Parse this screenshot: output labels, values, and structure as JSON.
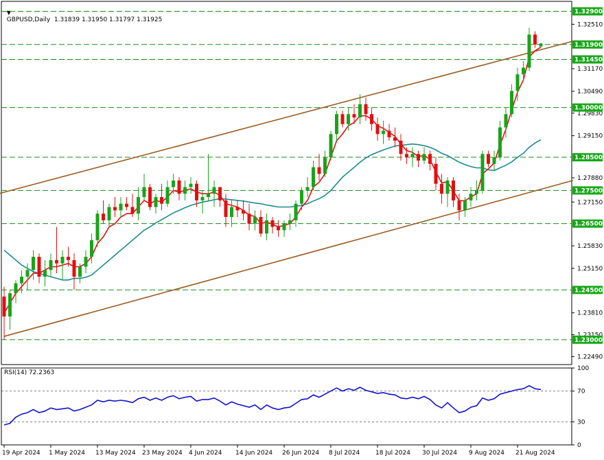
{
  "colors": {
    "up": "#1aa31a",
    "down": "#e01010",
    "ema_fast": "#e01010",
    "sma_slow": "#1a8a8f",
    "channel": "#9b5a20",
    "level_line": "#1a8a1a",
    "level_box": "#18a818",
    "rsi": "#1010d0",
    "grid": "#000000"
  },
  "main": {
    "header": "GBPUSD,Daily  1.31839 1.31950 1.31797 1.31925",
    "y_ticks": [
      "1.32510",
      "1.31170",
      "1.30490",
      "1.29830",
      "1.29150",
      "1.27880",
      "1.27150",
      "1.25830",
      "1.25150",
      "1.23810",
      "1.23150",
      "1.22490"
    ],
    "levels": [
      "1.32900",
      "1.31900",
      "1.31450",
      "1.30000",
      "1.28500",
      "1.27500",
      "1.26500",
      "1.24500",
      "1.23000"
    ]
  },
  "rsi": {
    "label": "RSI(14) 72.2363",
    "ticks": [
      "100",
      "70",
      "30",
      "0"
    ]
  },
  "x_axis": {
    "labels": [
      "19 Apr 2024",
      "1 May 2024",
      "13 May 2024",
      "23 May 2024",
      "4 Jun 2024",
      "14 Jun 2024",
      "26 Jun 2024",
      "8 Jul 2024",
      "18 Jul 2024",
      "30 Jul 2024",
      "9 Aug 2024",
      "21 Aug 2024"
    ]
  },
  "chart_data": {
    "type": "candlestick",
    "symbol": "GBPUSD",
    "timeframe": "Daily",
    "ylim": [
      1.2225,
      1.332
    ],
    "x_label_index": [
      0,
      8,
      16,
      24,
      32,
      40,
      48,
      56,
      64,
      72,
      80,
      88
    ],
    "candles": [
      [
        1.243,
        1.246,
        1.23,
        1.237
      ],
      [
        1.237,
        1.245,
        1.233,
        1.244
      ],
      [
        1.244,
        1.248,
        1.241,
        1.247
      ],
      [
        1.247,
        1.251,
        1.244,
        1.249
      ],
      [
        1.249,
        1.253,
        1.245,
        1.251
      ],
      [
        1.251,
        1.257,
        1.248,
        1.255
      ],
      [
        1.255,
        1.256,
        1.247,
        1.249
      ],
      [
        1.249,
        1.254,
        1.246,
        1.251
      ],
      [
        1.251,
        1.256,
        1.249,
        1.254
      ],
      [
        1.254,
        1.264,
        1.25,
        1.253
      ],
      [
        1.253,
        1.257,
        1.248,
        1.255
      ],
      [
        1.255,
        1.258,
        1.252,
        1.254
      ],
      [
        1.254,
        1.256,
        1.245,
        1.249
      ],
      [
        1.249,
        1.253,
        1.247,
        1.252
      ],
      [
        1.252,
        1.257,
        1.25,
        1.255
      ],
      [
        1.255,
        1.262,
        1.253,
        1.26
      ],
      [
        1.26,
        1.269,
        1.258,
        1.268
      ],
      [
        1.268,
        1.272,
        1.265,
        1.266
      ],
      [
        1.266,
        1.271,
        1.264,
        1.27
      ],
      [
        1.27,
        1.273,
        1.267,
        1.269
      ],
      [
        1.269,
        1.273,
        1.267,
        1.271
      ],
      [
        1.271,
        1.273,
        1.269,
        1.27
      ],
      [
        1.27,
        1.274,
        1.267,
        1.268
      ],
      [
        1.268,
        1.276,
        1.266,
        1.273
      ],
      [
        1.273,
        1.28,
        1.272,
        1.276
      ],
      [
        1.276,
        1.277,
        1.269,
        1.27
      ],
      [
        1.27,
        1.274,
        1.268,
        1.273
      ],
      [
        1.273,
        1.277,
        1.269,
        1.271
      ],
      [
        1.271,
        1.278,
        1.27,
        1.276
      ],
      [
        1.276,
        1.28,
        1.274,
        1.278
      ],
      [
        1.278,
        1.279,
        1.272,
        1.274
      ],
      [
        1.274,
        1.278,
        1.272,
        1.276
      ],
      [
        1.276,
        1.279,
        1.274,
        1.277
      ],
      [
        1.277,
        1.278,
        1.27,
        1.272
      ],
      [
        1.272,
        1.275,
        1.268,
        1.273
      ],
      [
        1.273,
        1.286,
        1.272,
        1.274
      ],
      [
        1.274,
        1.278,
        1.27,
        1.276
      ],
      [
        1.276,
        1.276,
        1.27,
        1.272
      ],
      [
        1.272,
        1.274,
        1.264,
        1.267
      ],
      [
        1.267,
        1.272,
        1.264,
        1.27
      ],
      [
        1.27,
        1.272,
        1.267,
        1.269
      ],
      [
        1.269,
        1.272,
        1.266,
        1.268
      ],
      [
        1.268,
        1.271,
        1.263,
        1.265
      ],
      [
        1.265,
        1.269,
        1.263,
        1.267
      ],
      [
        1.267,
        1.269,
        1.261,
        1.262
      ],
      [
        1.262,
        1.268,
        1.26,
        1.266
      ],
      [
        1.266,
        1.267,
        1.262,
        1.264
      ],
      [
        1.264,
        1.266,
        1.261,
        1.263
      ],
      [
        1.263,
        1.266,
        1.261,
        1.265
      ],
      [
        1.265,
        1.268,
        1.263,
        1.266
      ],
      [
        1.266,
        1.272,
        1.264,
        1.271
      ],
      [
        1.271,
        1.276,
        1.269,
        1.275
      ],
      [
        1.275,
        1.279,
        1.273,
        1.276
      ],
      [
        1.276,
        1.284,
        1.275,
        1.282
      ],
      [
        1.282,
        1.286,
        1.278,
        1.28
      ],
      [
        1.28,
        1.287,
        1.279,
        1.285
      ],
      [
        1.285,
        1.293,
        1.284,
        1.292
      ],
      [
        1.292,
        1.299,
        1.29,
        1.298
      ],
      [
        1.298,
        1.299,
        1.294,
        1.295
      ],
      [
        1.295,
        1.3,
        1.293,
        1.298
      ],
      [
        1.298,
        1.301,
        1.295,
        1.297
      ],
      [
        1.297,
        1.304,
        1.295,
        1.301
      ],
      [
        1.301,
        1.303,
        1.296,
        1.298
      ],
      [
        1.298,
        1.3,
        1.293,
        1.295
      ],
      [
        1.295,
        1.297,
        1.29,
        1.292
      ],
      [
        1.292,
        1.296,
        1.289,
        1.293
      ],
      [
        1.293,
        1.295,
        1.29,
        1.291
      ],
      [
        1.291,
        1.294,
        1.288,
        1.29
      ],
      [
        1.29,
        1.292,
        1.284,
        1.286
      ],
      [
        1.286,
        1.288,
        1.283,
        1.285
      ],
      [
        1.285,
        1.288,
        1.282,
        1.286
      ],
      [
        1.286,
        1.287,
        1.282,
        1.284
      ],
      [
        1.284,
        1.288,
        1.283,
        1.286
      ],
      [
        1.286,
        1.287,
        1.281,
        1.283
      ],
      [
        1.283,
        1.285,
        1.275,
        1.277
      ],
      [
        1.277,
        1.28,
        1.271,
        1.274
      ],
      [
        1.274,
        1.279,
        1.27,
        1.278
      ],
      [
        1.278,
        1.279,
        1.27,
        1.272
      ],
      [
        1.272,
        1.274,
        1.266,
        1.269
      ],
      [
        1.269,
        1.273,
        1.267,
        1.272
      ],
      [
        1.272,
        1.276,
        1.27,
        1.274
      ],
      [
        1.274,
        1.278,
        1.272,
        1.275
      ],
      [
        1.275,
        1.287,
        1.274,
        1.286
      ],
      [
        1.286,
        1.287,
        1.282,
        1.283
      ],
      [
        1.283,
        1.287,
        1.281,
        1.285
      ],
      [
        1.285,
        1.296,
        1.284,
        1.294
      ],
      [
        1.294,
        1.3,
        1.291,
        1.298
      ],
      [
        1.298,
        1.307,
        1.297,
        1.305
      ],
      [
        1.305,
        1.312,
        1.302,
        1.31
      ],
      [
        1.31,
        1.314,
        1.308,
        1.312
      ],
      [
        1.312,
        1.324,
        1.311,
        1.322
      ],
      [
        1.322,
        1.323,
        1.318,
        1.319
      ],
      [
        1.3184,
        1.3195,
        1.318,
        1.3193
      ]
    ],
    "ema_fast": [
      1.238,
      1.241,
      1.244,
      1.246,
      1.248,
      1.25,
      1.25,
      1.251,
      1.252,
      1.252,
      1.2525,
      1.253,
      1.252,
      1.252,
      1.253,
      1.255,
      1.259,
      1.261,
      1.264,
      1.265,
      1.267,
      1.268,
      1.268,
      1.27,
      1.272,
      1.271,
      1.272,
      1.2715,
      1.273,
      1.275,
      1.2745,
      1.275,
      1.2755,
      1.2745,
      1.274,
      1.274,
      1.2745,
      1.2735,
      1.271,
      1.2705,
      1.27,
      1.269,
      1.2675,
      1.2672,
      1.265,
      1.2655,
      1.2648,
      1.264,
      1.2645,
      1.265,
      1.267,
      1.27,
      1.272,
      1.276,
      1.2775,
      1.28,
      1.285,
      1.29,
      1.292,
      1.2945,
      1.2955,
      1.2975,
      1.2975,
      1.2965,
      1.2945,
      1.2937,
      1.2925,
      1.2913,
      1.289,
      1.287,
      1.2865,
      1.2852,
      1.2856,
      1.2843,
      1.2806,
      1.2773,
      1.2776,
      1.2748,
      1.2719,
      1.2719,
      1.273,
      1.274,
      1.28,
      1.2815,
      1.2833,
      1.2887,
      1.2934,
      1.2992,
      1.3046,
      1.3083,
      1.3152,
      1.3171,
      1.3182
    ],
    "sma_slow": [
      1.257,
      1.2555,
      1.254,
      1.2525,
      1.2515,
      1.2505,
      1.25,
      1.2495,
      1.249,
      1.2485,
      1.248,
      1.248,
      1.2485,
      1.2485,
      1.2488,
      1.2495,
      1.251,
      1.2525,
      1.254,
      1.2555,
      1.257,
      1.2585,
      1.26,
      1.2615,
      1.263,
      1.264,
      1.2652,
      1.2662,
      1.2672,
      1.2682,
      1.269,
      1.2698,
      1.2705,
      1.271,
      1.2715,
      1.2718,
      1.2722,
      1.2725,
      1.2724,
      1.2722,
      1.272,
      1.2718,
      1.2715,
      1.2712,
      1.271,
      1.2706,
      1.2703,
      1.27,
      1.27,
      1.27,
      1.2702,
      1.2705,
      1.271,
      1.2718,
      1.2725,
      1.2735,
      1.275,
      1.277,
      1.279,
      1.2805,
      1.282,
      1.2835,
      1.2848,
      1.2858,
      1.2865,
      1.2872,
      1.2878,
      1.2884,
      1.2886,
      1.2888,
      1.289,
      1.2888,
      1.2885,
      1.288,
      1.2872,
      1.2862,
      1.2855,
      1.2845,
      1.2835,
      1.2828,
      1.2822,
      1.2818,
      1.2818,
      1.2812,
      1.281,
      1.2818,
      1.2826,
      1.2836,
      1.285,
      1.2862,
      1.288,
      1.2893,
      1.2903
    ],
    "channel": {
      "upper": {
        "from": [
          -1,
          1.274
        ],
        "to": [
          97.5,
          1.32
        ]
      },
      "lower": {
        "from": [
          0,
          1.231
        ],
        "to": [
          97.5,
          1.278
        ]
      }
    },
    "rsi_ylim": [
      0,
      100
    ],
    "rsi_levels": [
      70,
      30
    ],
    "rsi_values": [
      26,
      28,
      36,
      40,
      42,
      46,
      42,
      44,
      48,
      46,
      47,
      48,
      44,
      46,
      49,
      52,
      58,
      56,
      58,
      57,
      58,
      57,
      55,
      60,
      62,
      58,
      61,
      58,
      62,
      64,
      60,
      62,
      63,
      57,
      59,
      59,
      61,
      57,
      52,
      56,
      53,
      51,
      49,
      52,
      46,
      52,
      48,
      46,
      48,
      49,
      54,
      59,
      60,
      65,
      62,
      66,
      70,
      74,
      70,
      73,
      71,
      75,
      71,
      69,
      67,
      68,
      66,
      65,
      61,
      60,
      62,
      60,
      63,
      59,
      52,
      48,
      55,
      48,
      42,
      44,
      49,
      51,
      61,
      58,
      60,
      66,
      68,
      70,
      72,
      73,
      77,
      73,
      72
    ]
  }
}
